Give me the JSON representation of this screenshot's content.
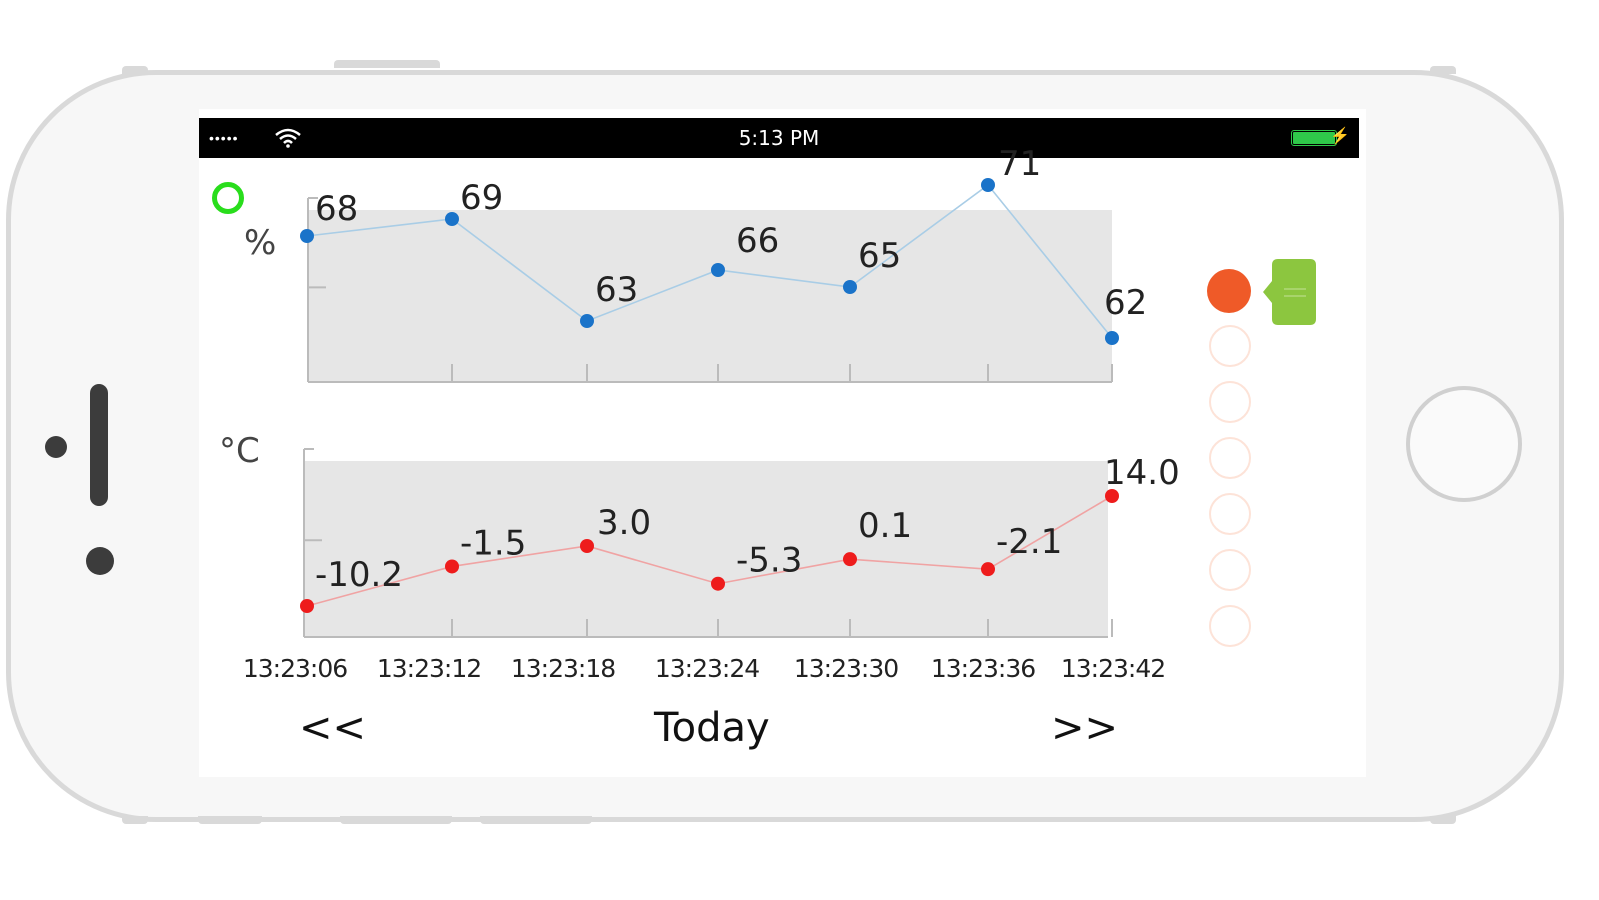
{
  "status_bar": {
    "signal": "•••••",
    "time": "5:13 PM"
  },
  "units": {
    "humidity": "%",
    "temperature": "°C"
  },
  "chart_data": [
    {
      "type": "line",
      "title": "",
      "ylabel": "%",
      "x": [
        "13:23:06",
        "13:23:12",
        "13:23:18",
        "13:23:24",
        "13:23:30",
        "13:23:36",
        "13:23:42"
      ],
      "values": [
        68,
        69,
        63,
        66,
        65,
        71,
        62
      ],
      "labels": [
        "68",
        "69",
        "63",
        "66",
        "65",
        "71",
        "62"
      ],
      "ylim": [
        57,
        75
      ],
      "grid": false,
      "color": "#1a73c9",
      "line_color": "#a9cde6"
    },
    {
      "type": "line",
      "title": "",
      "ylabel": "°C",
      "x": [
        "13:23:06",
        "13:23:12",
        "13:23:18",
        "13:23:24",
        "13:23:30",
        "13:23:36",
        "13:23:42"
      ],
      "values": [
        -10.2,
        -1.5,
        3.0,
        -5.3,
        0.1,
        -2.1,
        14.0
      ],
      "labels": [
        "-10.2",
        "-1.5",
        "3.0",
        "-5.3",
        "0.1",
        "-2.1",
        "14.0"
      ],
      "ylim": [
        -11,
        14
      ],
      "grid": false,
      "color": "#ee1c1c",
      "line_color": "#f0a3a3"
    }
  ],
  "x_axis_labels": [
    "13:23:06",
    "13:23:12",
    "13:23:18",
    "13:23:24",
    "13:23:30",
    "13:23:36",
    "13:23:42"
  ],
  "nav": {
    "prev": "<<",
    "label": "Today",
    "next": ">>"
  },
  "side_panel": {
    "active_color": "#ef5a28",
    "flag_color": "#8cc63f",
    "empty_count": 6
  },
  "colors": {
    "accent_green": "#29dd1c",
    "plot_background": "#e6e6e6"
  }
}
